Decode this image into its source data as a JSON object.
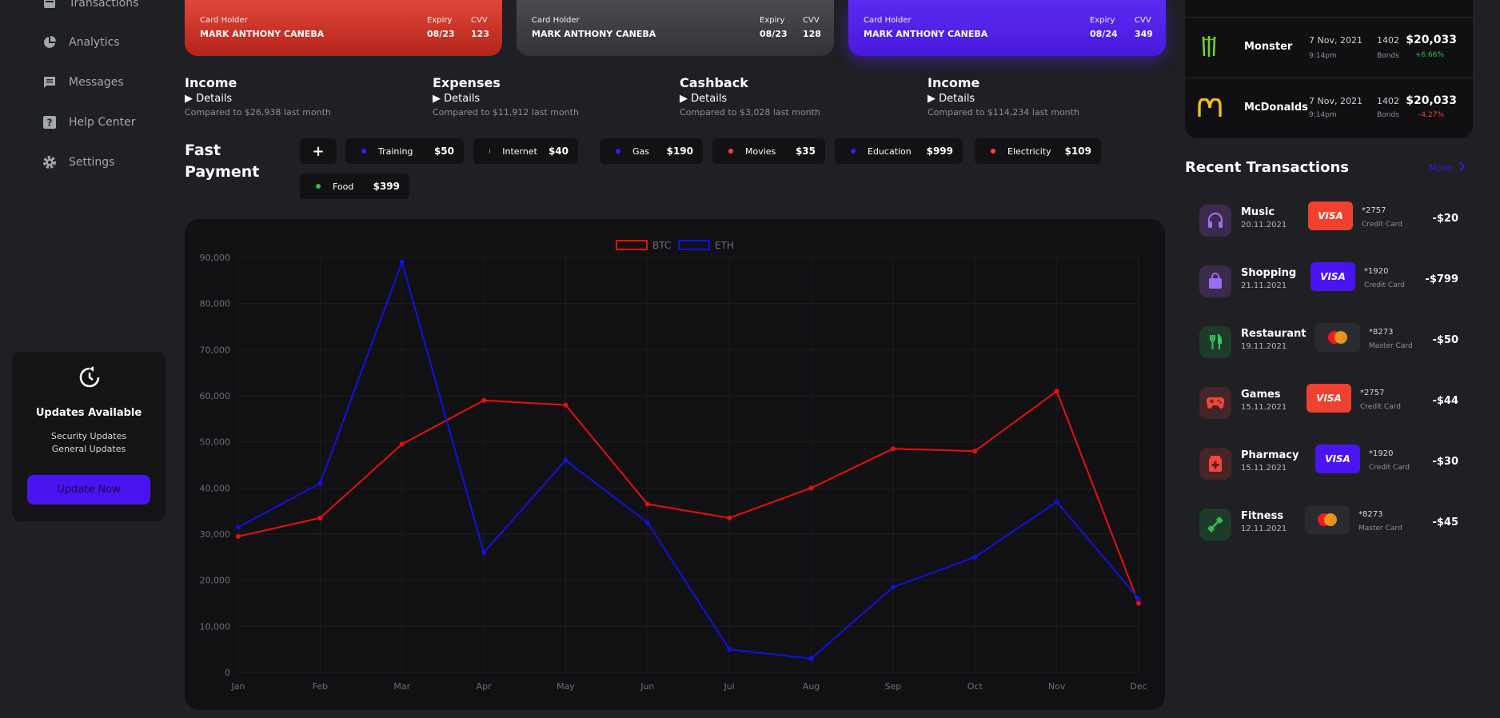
{
  "sidebar": {
    "items": [
      {
        "label": "Transactions",
        "icon": "wallet-icon"
      },
      {
        "label": "Analytics",
        "icon": "pie-chart-icon"
      },
      {
        "label": "Messages",
        "icon": "message-icon"
      },
      {
        "label": "Help Center",
        "icon": "help-icon"
      },
      {
        "label": "Settings",
        "icon": "gear-icon"
      }
    ],
    "update": {
      "title": "Updates Available",
      "line1": "Security Updates",
      "line2": "General Updates",
      "button": "Update Now"
    }
  },
  "cards": [
    {
      "holder_label": "Card Holder",
      "holder": "MARK ANTHONY CANEBA",
      "expiry_label": "Expiry",
      "expiry": "08/23",
      "cvv_label": "CVV",
      "cvv": "123",
      "color": "#d8382c"
    },
    {
      "holder_label": "Card Holder",
      "holder": "MARK ANTHONY CANEBA",
      "expiry_label": "Expiry",
      "expiry": "08/23",
      "cvv_label": "CVV",
      "cvv": "128",
      "color": "#434448"
    },
    {
      "holder_label": "Card Holder",
      "holder": "MARK ANTHONY CANEBA",
      "expiry_label": "Expiry",
      "expiry": "08/24",
      "cvv_label": "CVV",
      "cvv": "349",
      "color": "#5325e6"
    }
  ],
  "stats": [
    {
      "title": "Income",
      "details": "▶ Details",
      "compare": "Compared to $26,938 last month"
    },
    {
      "title": "Expenses",
      "details": "▶ Details",
      "compare": "Compared to $11,912 last month"
    },
    {
      "title": "Cashback",
      "details": "▶ Details",
      "compare": "Compared to $3,028 last month"
    },
    {
      "title": "Income",
      "details": "▶ Details",
      "compare": "Compared to $114,234 last month"
    }
  ],
  "fast_payment": {
    "title_line1": "Fast",
    "title_line2": "Payment",
    "add": "+",
    "items": [
      {
        "name": "Training",
        "amount": "$50",
        "color": "#4a14f2"
      },
      {
        "name": "Internet",
        "amount": "$40",
        "color": "#2fbf4a"
      },
      {
        "name": "Gas",
        "amount": "$190",
        "color": "#4a14f2"
      },
      {
        "name": "Movies",
        "amount": "$35",
        "color": "#f1463a"
      },
      {
        "name": "Education",
        "amount": "$999",
        "color": "#4a14f2"
      },
      {
        "name": "Electricity",
        "amount": "$109",
        "color": "#f1463a"
      },
      {
        "name": "Food",
        "amount": "$399",
        "color": "#2fbf4a"
      }
    ]
  },
  "chart_data": {
    "type": "line",
    "categories": [
      "Jan",
      "Feb",
      "Mar",
      "Apr",
      "May",
      "Jun",
      "Jul",
      "Aug",
      "Sep",
      "Oct",
      "Nov",
      "Dec"
    ],
    "series": [
      {
        "name": "BTC",
        "color": "#e8100c",
        "values": [
          29500,
          33500,
          49500,
          59000,
          58000,
          36500,
          33500,
          40000,
          48500,
          48000,
          61000,
          15000
        ]
      },
      {
        "name": "ETH",
        "color": "#1010e6",
        "values": [
          31500,
          41000,
          89000,
          26000,
          46000,
          32500,
          5000,
          3000,
          18500,
          25000,
          37000,
          16000
        ]
      }
    ],
    "yticks": [
      "0",
      "10,000",
      "20,000",
      "30,000",
      "40,000",
      "50,000",
      "60,000",
      "70,000",
      "80,000",
      "90,000"
    ],
    "ylim": [
      0,
      90000
    ],
    "legend": "top-center",
    "grid": true
  },
  "top_list": [
    {
      "name": "Monster",
      "date": "7 Nov, 2021",
      "time": "9:14pm",
      "num": "1402",
      "bond": "Bonds",
      "amount": "$20,033",
      "change": "+6.66%",
      "change_color": "#2fbf4a",
      "icon": "monster-logo-icon"
    },
    {
      "name": "McDonalds",
      "date": "7 Nov, 2021",
      "time": "9:14pm",
      "num": "1402",
      "bond": "Bonds",
      "amount": "$20,033",
      "change": "-4.27%",
      "change_color": "#f1463a",
      "icon": "mcdonalds-logo-icon"
    }
  ],
  "recent": {
    "title": "Recent Transactions",
    "more": "More",
    "items": [
      {
        "name": "Music",
        "date": "20.11.2021",
        "card": "VISA",
        "card_type": "visa-red",
        "num": "*2757",
        "type": "Credit Card",
        "amount": "-$20",
        "icon": "headphones-icon",
        "icon_bg": "#3a2b4c",
        "icon_color": "#9e6cf0"
      },
      {
        "name": "Shopping",
        "date": "21.11.2021",
        "card": "VISA",
        "card_type": "visa-purple",
        "num": "*1920",
        "type": "Credit Card",
        "amount": "-$799",
        "icon": "shopping-bag-icon",
        "icon_bg": "#3a2b4c",
        "icon_color": "#9e6cf0"
      },
      {
        "name": "Restaurant",
        "date": "19.11.2021",
        "card": "",
        "card_type": "mastercard",
        "num": "*8273",
        "type": "Master Card",
        "amount": "-$50",
        "icon": "restaurant-icon",
        "icon_bg": "#1f3a2a",
        "icon_color": "#35c75a"
      },
      {
        "name": "Games",
        "date": "15.11.2021",
        "card": "VISA",
        "card_type": "visa-red",
        "num": "*2757",
        "type": "Credit Card",
        "amount": "-$44",
        "icon": "gamepad-icon",
        "icon_bg": "#452527",
        "icon_color": "#f1463a"
      },
      {
        "name": "Pharmacy",
        "date": "15.11.2021",
        "card": "VISA",
        "card_type": "visa-purple",
        "num": "*1920",
        "type": "Credit Card",
        "amount": "-$30",
        "icon": "pharmacy-icon",
        "icon_bg": "#452527",
        "icon_color": "#f1463a"
      },
      {
        "name": "Fitness",
        "date": "12.11.2021",
        "card": "",
        "card_type": "mastercard",
        "num": "*8273",
        "type": "Master Card",
        "amount": "-$45",
        "icon": "dumbbell-icon",
        "icon_bg": "#1f3a2a",
        "icon_color": "#35c75a"
      }
    ]
  }
}
